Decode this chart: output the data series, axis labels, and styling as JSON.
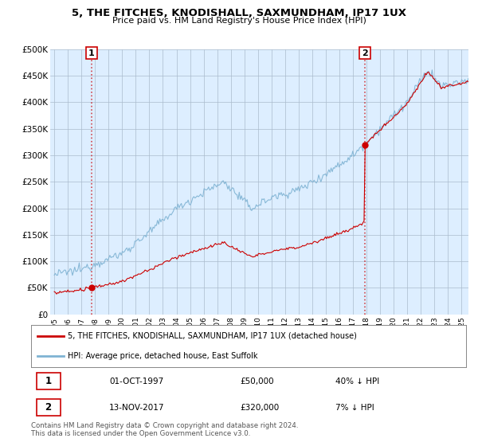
{
  "title": "5, THE FITCHES, KNODISHALL, SAXMUNDHAM, IP17 1UX",
  "subtitle": "Price paid vs. HM Land Registry's House Price Index (HPI)",
  "ylim": [
    0,
    500000
  ],
  "yticks": [
    0,
    50000,
    100000,
    150000,
    200000,
    250000,
    300000,
    350000,
    400000,
    450000,
    500000
  ],
  "ytick_labels": [
    "£0",
    "£50K",
    "£100K",
    "£150K",
    "£200K",
    "£250K",
    "£300K",
    "£350K",
    "£400K",
    "£450K",
    "£500K"
  ],
  "xlim_start": 1995.0,
  "xlim_end": 2025.5,
  "sale1_year": 1997.75,
  "sale1_price": 50000,
  "sale1_label": "1",
  "sale2_year": 2017.87,
  "sale2_price": 320000,
  "sale2_label": "2",
  "legend_line1": "5, THE FITCHES, KNODISHALL, SAXMUNDHAM, IP17 1UX (detached house)",
  "legend_line2": "HPI: Average price, detached house, East Suffolk",
  "table_row1_num": "1",
  "table_row1_date": "01-OCT-1997",
  "table_row1_price": "£50,000",
  "table_row1_hpi": "40% ↓ HPI",
  "table_row2_num": "2",
  "table_row2_date": "13-NOV-2017",
  "table_row2_price": "£320,000",
  "table_row2_hpi": "7% ↓ HPI",
  "footer": "Contains HM Land Registry data © Crown copyright and database right 2024.\nThis data is licensed under the Open Government Licence v3.0.",
  "red_line_color": "#cc0000",
  "blue_line_color": "#7fb3d3",
  "plot_bg_color": "#ddeeff",
  "bg_color": "#ffffff",
  "grid_color": "#aabbcc"
}
